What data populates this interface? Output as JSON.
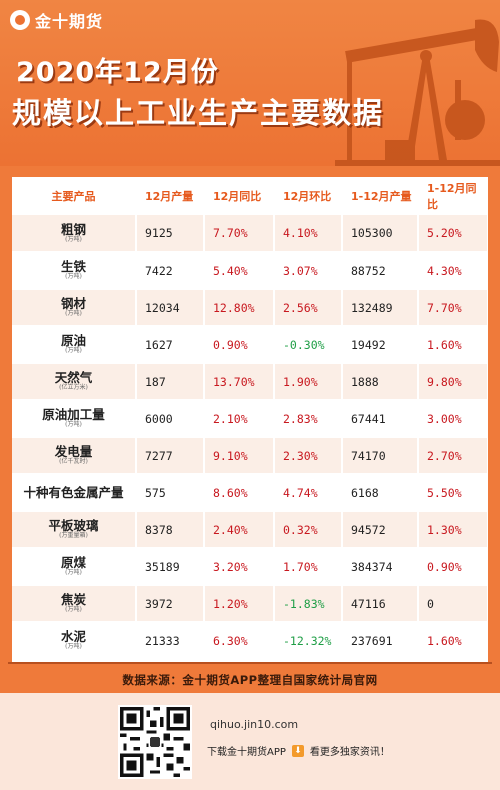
{
  "brand": {
    "name": "金十期货"
  },
  "header": {
    "title_line1": "2020年12月份",
    "title_line2": "规模以上工业生产主要数据"
  },
  "table": {
    "columns": [
      "主要产品",
      "12月产量",
      "12月同比",
      "12月环比",
      "1-12月产量",
      "1-12月同比"
    ],
    "rows": [
      {
        "name": "粗钢",
        "unit": "(万吨)",
        "dec_output": "9125",
        "dec_yoy": "7.70%",
        "dec_mom": "4.10%",
        "ytd_output": "105300",
        "ytd_yoy": "5.20%"
      },
      {
        "name": "生铁",
        "unit": "(万吨)",
        "dec_output": "7422",
        "dec_yoy": "5.40%",
        "dec_mom": "3.07%",
        "ytd_output": "88752",
        "ytd_yoy": "4.30%"
      },
      {
        "name": "钢材",
        "unit": "(万吨)",
        "dec_output": "12034",
        "dec_yoy": "12.80%",
        "dec_mom": "2.56%",
        "ytd_output": "132489",
        "ytd_yoy": "7.70%"
      },
      {
        "name": "原油",
        "unit": "(万吨)",
        "dec_output": "1627",
        "dec_yoy": "0.90%",
        "dec_mom": "-0.30%",
        "ytd_output": "19492",
        "ytd_yoy": "1.60%"
      },
      {
        "name": "天然气",
        "unit": "(亿立方米)",
        "dec_output": "187",
        "dec_yoy": "13.70%",
        "dec_mom": "1.90%",
        "ytd_output": "1888",
        "ytd_yoy": "9.80%"
      },
      {
        "name": "原油加工量",
        "unit": "(万吨)",
        "dec_output": "6000",
        "dec_yoy": "2.10%",
        "dec_mom": "2.83%",
        "ytd_output": "67441",
        "ytd_yoy": "3.00%"
      },
      {
        "name": "发电量",
        "unit": "(亿千瓦时)",
        "dec_output": "7277",
        "dec_yoy": "9.10%",
        "dec_mom": "2.30%",
        "ytd_output": "74170",
        "ytd_yoy": "2.70%"
      },
      {
        "name": "十种有色金属产量",
        "unit": "",
        "dec_output": "575",
        "dec_yoy": "8.60%",
        "dec_mom": "4.74%",
        "ytd_output": "6168",
        "ytd_yoy": "5.50%"
      },
      {
        "name": "平板玻璃",
        "unit": "(万重量箱)",
        "dec_output": "8378",
        "dec_yoy": "2.40%",
        "dec_mom": "0.32%",
        "ytd_output": "94572",
        "ytd_yoy": "1.30%"
      },
      {
        "name": "原煤",
        "unit": "(万吨)",
        "dec_output": "35189",
        "dec_yoy": "3.20%",
        "dec_mom": "1.70%",
        "ytd_output": "384374",
        "ytd_yoy": "0.90%"
      },
      {
        "name": "焦炭",
        "unit": "(万吨)",
        "dec_output": "3972",
        "dec_yoy": "1.20%",
        "dec_mom": "-1.83%",
        "ytd_output": "47116",
        "ytd_yoy": "0"
      },
      {
        "name": "水泥",
        "unit": "(万吨)",
        "dec_output": "21333",
        "dec_yoy": "6.30%",
        "dec_mom": "-12.32%",
        "ytd_output": "237691",
        "ytd_yoy": "1.60%"
      }
    ]
  },
  "watermark": "金十期货",
  "footer": {
    "source": "数据来源：金十期货APP整理自国家统计局官网",
    "site": "qihuo.jin10.com",
    "download_text": "下载金十期货APP",
    "download_suffix": "看更多独家资讯！",
    "download_icon": "download-icon"
  },
  "colors": {
    "header_orange": "#ec7233",
    "header_text_accent": "#e65a1e",
    "positive": "#c8181f",
    "negative": "#1f9e46"
  }
}
